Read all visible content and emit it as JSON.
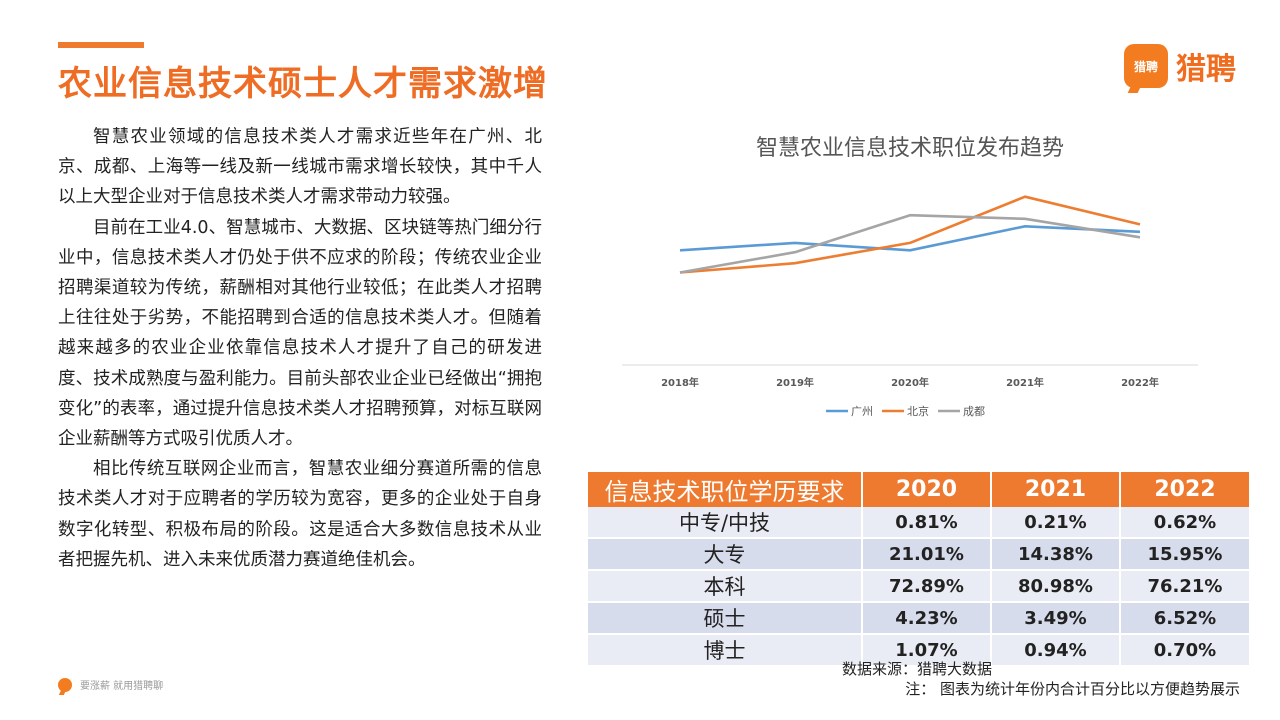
{
  "title": "农业信息技术硕士人才需求激增",
  "logo": {
    "badge": "猎聘",
    "text": "猎聘"
  },
  "paragraphs": [
    "智慧农业领域的信息技术类人才需求近些年在广州、北京、成都、上海等一线及新一线城市需求增长较快，其中千人以上大型企业对于信息技术类人才需求带动力较强。",
    "目前在工业4.0、智慧城市、大数据、区块链等热门细分行业中，信息技术类人才仍处于供不应求的阶段；传统农业企业招聘渠道较为传统，薪酬相对其他行业较低；在此类人才招聘上往往处于劣势，不能招聘到合适的信息技术类人才。但随着越来越多的农业企业依靠信息技术人才提升了自己的研发进度、技术成熟度与盈利能力。目前头部农业企业已经做出“拥抱变化”的表率，通过提升信息技术类人才招聘预算，对标互联网企业薪酬等方式吸引优质人才。",
    "相比传统互联网企业而言，智慧农业细分赛道所需的信息技术类人才对于应聘者的学历较为宽容，更多的企业处于自身数字化转型、积极布局的阶段。这是适合大多数信息技术从业者把握先机、进入未来优质潜力赛道绝佳机会。"
  ],
  "footer": {
    "text": "要涨薪 就用猎聘聊"
  },
  "chart_data": {
    "type": "line",
    "title": "智慧农业信息技术职位发布趋势",
    "categories": [
      "2018年",
      "2019年",
      "2020年",
      "2021年",
      "2022年"
    ],
    "series": [
      {
        "name": "广州",
        "color": "#5b9bd5",
        "values": [
          6.2,
          6.6,
          6.2,
          7.5,
          7.2
        ]
      },
      {
        "name": "北京",
        "color": "#ed7d31",
        "values": [
          5.0,
          5.5,
          6.6,
          9.1,
          7.6
        ]
      },
      {
        "name": "成都",
        "color": "#a5a5a5",
        "values": [
          5.0,
          6.1,
          8.1,
          7.9,
          6.9
        ]
      }
    ],
    "ylim": [
      0,
      10
    ],
    "grid": false,
    "legend": "bottom",
    "y_axis_visible": false
  },
  "table": {
    "header_label": "信息技术职位学历要求",
    "years": [
      "2020",
      "2021",
      "2022"
    ],
    "rows": [
      {
        "label": "中专/中技",
        "values": [
          "0.81%",
          "0.21%",
          "0.62%"
        ]
      },
      {
        "label": "大专",
        "values": [
          "21.01%",
          "14.38%",
          "15.95%"
        ]
      },
      {
        "label": "本科",
        "values": [
          "72.89%",
          "80.98%",
          "76.21%"
        ]
      },
      {
        "label": "硕士",
        "values": [
          "4.23%",
          "3.49%",
          "6.52%"
        ]
      },
      {
        "label": "博士",
        "values": [
          "1.07%",
          "0.94%",
          "0.70%"
        ]
      }
    ]
  },
  "source": "数据来源：猎聘大数据",
  "note": "注： 图表为统计年份内合计百分比以方便趋势展示",
  "colors": {
    "brand": "#ee7a30",
    "table_odd": "#e9ecf4",
    "table_even": "#d7dcec"
  }
}
